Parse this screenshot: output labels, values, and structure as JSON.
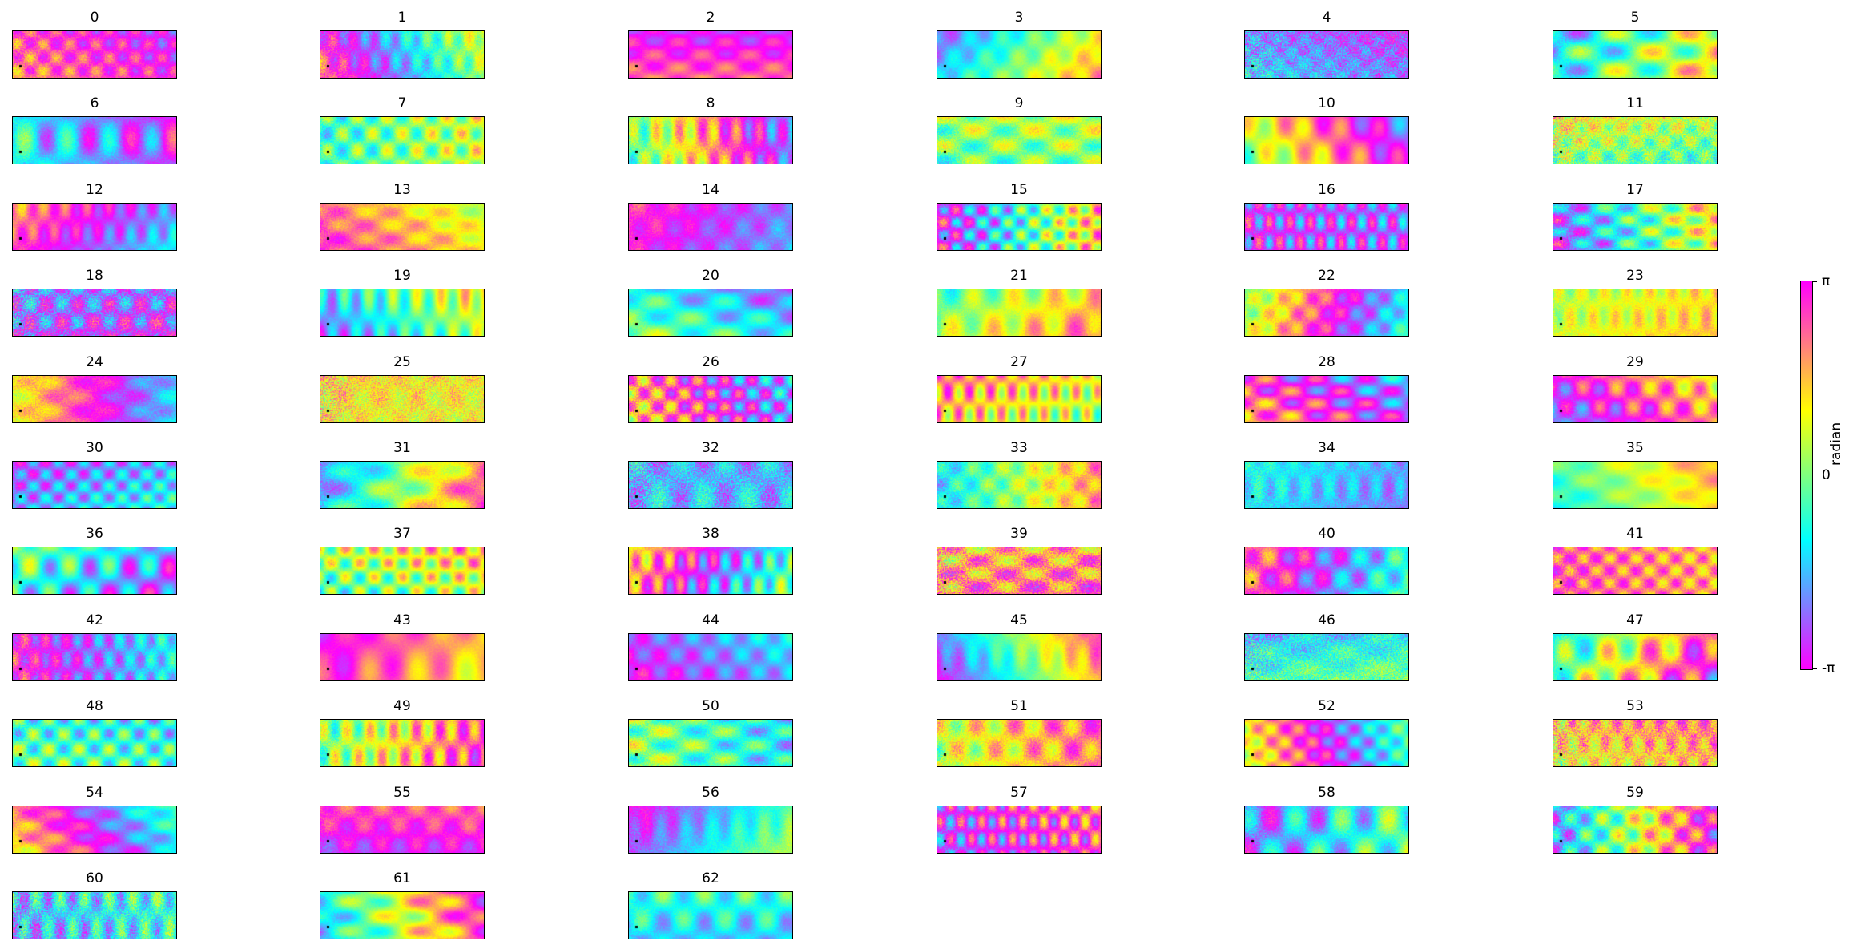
{
  "chart_data": {
    "type": "heatmap",
    "panel_titles": [
      "0",
      "1",
      "2",
      "3",
      "4",
      "5",
      "6",
      "7",
      "8",
      "9",
      "10",
      "11",
      "12",
      "13",
      "14",
      "15",
      "16",
      "17",
      "18",
      "19",
      "20",
      "21",
      "22",
      "23",
      "24",
      "25",
      "26",
      "27",
      "28",
      "29",
      "30",
      "31",
      "32",
      "33",
      "34",
      "35",
      "36",
      "37",
      "38",
      "39",
      "40",
      "41",
      "42",
      "43",
      "44",
      "45",
      "46",
      "47",
      "48",
      "49",
      "50",
      "51",
      "52",
      "53",
      "54",
      "55",
      "56",
      "57",
      "58",
      "59",
      "60",
      "61",
      "62"
    ],
    "grid_columns": 6,
    "colormap": [
      "#ff00ff",
      "#7f7fff",
      "#00ffff",
      "#7fff7f",
      "#ffff00",
      "#ff7f7f",
      "#ff00ff"
    ],
    "vmin_label": "-π",
    "zero_label": "0",
    "vmax_label": "π",
    "colorbar_label": "radian",
    "value_range": [
      -3.14159,
      3.14159
    ],
    "reference_point_color": "#000000"
  }
}
